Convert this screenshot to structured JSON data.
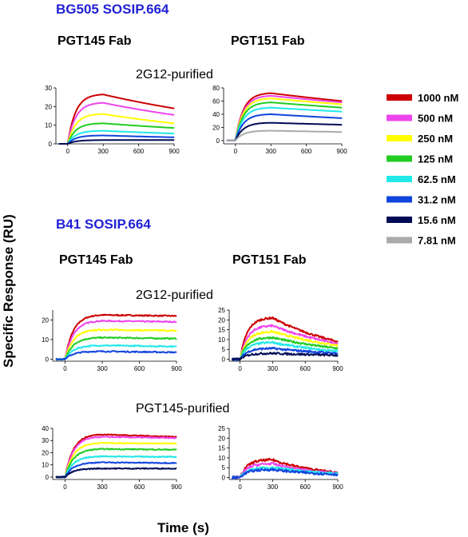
{
  "sections": [
    {
      "title": "BG505 SOSIP.664",
      "fab_left": "PGT145 Fab",
      "fab_right": "PGT151 Fab"
    },
    {
      "title": "B41 SOSIP.664",
      "fab_left": "PGT145 Fab",
      "fab_right": "PGT151 Fab"
    }
  ],
  "conditions": [
    "2G12-purified",
    "2G12-purified",
    "PGT145-purified"
  ],
  "axis_labels": {
    "y": "Specific Response (RU)",
    "x": "Time (s)"
  },
  "legend": [
    {
      "label": "1000 nM",
      "color": "#cc0000"
    },
    {
      "label": "500 nM",
      "color": "#ee44ee"
    },
    {
      "label": "250 nM",
      "color": "#ffff00"
    },
    {
      "label": "125 nM",
      "color": "#22cc22"
    },
    {
      "label": "62.5 nM",
      "color": "#22e8e8"
    },
    {
      "label": "31.2 nM",
      "color": "#1144dd"
    },
    {
      "label": "15.6 nM",
      "color": "#000b55"
    },
    {
      "label": "7.81 nM",
      "color": "#aaaaaa"
    }
  ],
  "chart_data": [
    {
      "id": "bg505-pgt145-2g12",
      "type": "line",
      "title": "",
      "xlabel": "",
      "ylabel": "",
      "xlim": [
        -100,
        900
      ],
      "ylim": [
        0,
        30
      ],
      "xticks": [
        0,
        300,
        600,
        900
      ],
      "yticks": [
        0,
        10,
        20,
        30
      ],
      "association_end": 300,
      "offset": 0,
      "noise": 0,
      "series": [
        {
          "concentration": "1000 nM",
          "peak": 26.5,
          "end": 19
        },
        {
          "concentration": "500 nM",
          "peak": 22,
          "end": 15.5
        },
        {
          "concentration": "250 nM",
          "peak": 16,
          "end": 11
        },
        {
          "concentration": "125 nM",
          "peak": 11,
          "end": 8.5
        },
        {
          "concentration": "62.5 nM",
          "peak": 7,
          "end": 5.5
        },
        {
          "concentration": "31.2 nM",
          "peak": 4.5,
          "end": 3.5
        },
        {
          "concentration": "15.6 nM",
          "peak": 2,
          "end": 2
        }
      ]
    },
    {
      "id": "bg505-pgt151-2g12",
      "type": "line",
      "title": "",
      "xlabel": "",
      "ylabel": "",
      "xlim": [
        -100,
        900
      ],
      "ylim": [
        -5,
        80
      ],
      "xticks": [
        0,
        300,
        600,
        900
      ],
      "yticks": [
        0,
        20,
        40,
        60,
        80
      ],
      "association_end": 300,
      "offset": 0,
      "noise": 0,
      "series": [
        {
          "concentration": "1000 nM",
          "peak": 72,
          "end": 60
        },
        {
          "concentration": "500 nM",
          "peak": 68,
          "end": 58
        },
        {
          "concentration": "250 nM",
          "peak": 64,
          "end": 55
        },
        {
          "concentration": "125 nM",
          "peak": 58,
          "end": 50
        },
        {
          "concentration": "62.5 nM",
          "peak": 50,
          "end": 44
        },
        {
          "concentration": "31.2 nM",
          "peak": 40,
          "end": 34
        },
        {
          "concentration": "15.6 nM",
          "peak": 27,
          "end": 24
        },
        {
          "concentration": "7.81 nM",
          "peak": 15,
          "end": 13
        }
      ]
    },
    {
      "id": "b41-pgt145-2g12",
      "type": "line",
      "title": "",
      "xlabel": "",
      "ylabel": "",
      "xlim": [
        -100,
        900
      ],
      "ylim": [
        -1,
        25
      ],
      "xticks": [
        0,
        300,
        600,
        900
      ],
      "yticks": [
        0,
        10,
        20
      ],
      "association_end": 300,
      "offset": 0,
      "noise": 0.3,
      "series": [
        {
          "concentration": "1000 nM",
          "peak": 22.5,
          "end": 22
        },
        {
          "concentration": "500 nM",
          "peak": 19.5,
          "end": 19
        },
        {
          "concentration": "250 nM",
          "peak": 15,
          "end": 14.5
        },
        {
          "concentration": "125 nM",
          "peak": 11,
          "end": 10.5
        },
        {
          "concentration": "62.5 nM",
          "peak": 7,
          "end": 6.5
        },
        {
          "concentration": "31.2 nM",
          "peak": 4,
          "end": 3.5
        }
      ]
    },
    {
      "id": "b41-pgt151-2g12",
      "type": "line",
      "title": "",
      "xlabel": "",
      "ylabel": "",
      "xlim": [
        -100,
        900
      ],
      "ylim": [
        -1,
        25
      ],
      "xticks": [
        0,
        300,
        600,
        900
      ],
      "yticks": [
        0,
        5,
        10,
        15,
        20,
        25
      ],
      "association_end": 300,
      "offset": 0,
      "noise": 0.5,
      "series": [
        {
          "concentration": "1000 nM",
          "peak": 21,
          "end": 9
        },
        {
          "concentration": "500 nM",
          "peak": 17,
          "end": 8
        },
        {
          "concentration": "250 nM",
          "peak": 14,
          "end": 7
        },
        {
          "concentration": "125 nM",
          "peak": 11,
          "end": 5.5
        },
        {
          "concentration": "62.5 nM",
          "peak": 8.5,
          "end": 4
        },
        {
          "concentration": "31.2 nM",
          "peak": 5.5,
          "end": 3
        },
        {
          "concentration": "15.6 nM",
          "peak": 3,
          "end": 2
        }
      ]
    },
    {
      "id": "b41-pgt145-pgt145",
      "type": "line",
      "title": "",
      "xlabel": "",
      "ylabel": "",
      "xlim": [
        -100,
        900
      ],
      "ylim": [
        -2,
        40
      ],
      "xticks": [
        0,
        300,
        600,
        900
      ],
      "yticks": [
        0,
        10,
        20,
        30,
        40
      ],
      "association_end": 300,
      "offset": 0,
      "noise": 0.4,
      "series": [
        {
          "concentration": "1000 nM",
          "peak": 35,
          "end": 33
        },
        {
          "concentration": "500 nM",
          "peak": 33,
          "end": 32
        },
        {
          "concentration": "250 nM",
          "peak": 28,
          "end": 27.5
        },
        {
          "concentration": "125 nM",
          "peak": 23,
          "end": 22.5
        },
        {
          "concentration": "62.5 nM",
          "peak": 17,
          "end": 16.5
        },
        {
          "concentration": "31.2 nM",
          "peak": 12,
          "end": 11.5
        },
        {
          "concentration": "15.6 nM",
          "peak": 7,
          "end": 7
        }
      ]
    },
    {
      "id": "b41-pgt151-pgt145",
      "type": "line",
      "title": "",
      "xlabel": "",
      "ylabel": "",
      "xlim": [
        -100,
        900
      ],
      "ylim": [
        -1,
        25
      ],
      "xticks": [
        0,
        300,
        600,
        900
      ],
      "yticks": [
        0,
        5,
        10,
        15,
        20,
        25
      ],
      "association_end": 300,
      "offset": 0,
      "noise": 0.6,
      "series": [
        {
          "concentration": "1000 nM",
          "peak": 9,
          "end": 2.5
        },
        {
          "concentration": "500 nM",
          "peak": 7,
          "end": 2
        },
        {
          "concentration": "62.5 nM",
          "peak": 5,
          "end": 2
        },
        {
          "concentration": "31.2 nM",
          "peak": 4,
          "end": 1.5
        }
      ]
    }
  ]
}
